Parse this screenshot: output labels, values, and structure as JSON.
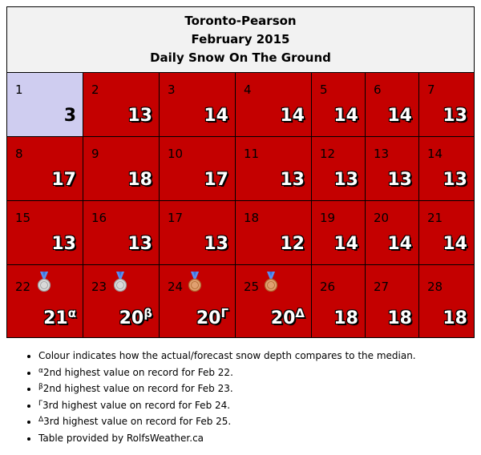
{
  "header": {
    "station": "Toronto-Pearson",
    "month": "February 2015",
    "subtitle": "Daily Snow On The Ground"
  },
  "colors": {
    "above_median": "#c40000",
    "below_median": "#cfcdf0",
    "header_bg": "#f2f2f2"
  },
  "days": [
    {
      "day": "1",
      "value": "3",
      "sup": "",
      "medal": "",
      "category": "below"
    },
    {
      "day": "2",
      "value": "13",
      "sup": "",
      "medal": "",
      "category": "above"
    },
    {
      "day": "3",
      "value": "14",
      "sup": "",
      "medal": "",
      "category": "above"
    },
    {
      "day": "4",
      "value": "14",
      "sup": "",
      "medal": "",
      "category": "above"
    },
    {
      "day": "5",
      "value": "14",
      "sup": "",
      "medal": "",
      "category": "above"
    },
    {
      "day": "6",
      "value": "14",
      "sup": "",
      "medal": "",
      "category": "above"
    },
    {
      "day": "7",
      "value": "13",
      "sup": "",
      "medal": "",
      "category": "above"
    },
    {
      "day": "8",
      "value": "17",
      "sup": "",
      "medal": "",
      "category": "above"
    },
    {
      "day": "9",
      "value": "18",
      "sup": "",
      "medal": "",
      "category": "above"
    },
    {
      "day": "10",
      "value": "17",
      "sup": "",
      "medal": "",
      "category": "above"
    },
    {
      "day": "11",
      "value": "13",
      "sup": "",
      "medal": "",
      "category": "above"
    },
    {
      "day": "12",
      "value": "13",
      "sup": "",
      "medal": "",
      "category": "above"
    },
    {
      "day": "13",
      "value": "13",
      "sup": "",
      "medal": "",
      "category": "above"
    },
    {
      "day": "14",
      "value": "13",
      "sup": "",
      "medal": "",
      "category": "above"
    },
    {
      "day": "15",
      "value": "13",
      "sup": "",
      "medal": "",
      "category": "above"
    },
    {
      "day": "16",
      "value": "13",
      "sup": "",
      "medal": "",
      "category": "above"
    },
    {
      "day": "17",
      "value": "13",
      "sup": "",
      "medal": "",
      "category": "above"
    },
    {
      "day": "18",
      "value": "12",
      "sup": "",
      "medal": "",
      "category": "above"
    },
    {
      "day": "19",
      "value": "14",
      "sup": "",
      "medal": "",
      "category": "above"
    },
    {
      "day": "20",
      "value": "14",
      "sup": "",
      "medal": "",
      "category": "above"
    },
    {
      "day": "21",
      "value": "14",
      "sup": "",
      "medal": "",
      "category": "above"
    },
    {
      "day": "22",
      "value": "21",
      "sup": "α",
      "medal": "silver",
      "category": "above"
    },
    {
      "day": "23",
      "value": "20",
      "sup": "β",
      "medal": "silver",
      "category": "above"
    },
    {
      "day": "24",
      "value": "20",
      "sup": "Γ",
      "medal": "bronze",
      "category": "above"
    },
    {
      "day": "25",
      "value": "20",
      "sup": "Δ",
      "medal": "bronze",
      "category": "above"
    },
    {
      "day": "26",
      "value": "18",
      "sup": "",
      "medal": "",
      "category": "above"
    },
    {
      "day": "27",
      "value": "18",
      "sup": "",
      "medal": "",
      "category": "above"
    },
    {
      "day": "28",
      "value": "18",
      "sup": "",
      "medal": "",
      "category": "above"
    }
  ],
  "notes": [
    {
      "sup": "",
      "text": "Colour indicates how the actual/forecast snow depth compares to the median."
    },
    {
      "sup": "α",
      "text": "2nd highest value on record for Feb 22."
    },
    {
      "sup": "β",
      "text": "2nd highest value on record for Feb 23."
    },
    {
      "sup": "Γ",
      "text": "3rd highest value on record for Feb 24."
    },
    {
      "sup": "Δ",
      "text": "3rd highest value on record for Feb 25."
    },
    {
      "sup": "",
      "text": "Table provided by RolfsWeather.ca"
    }
  ]
}
